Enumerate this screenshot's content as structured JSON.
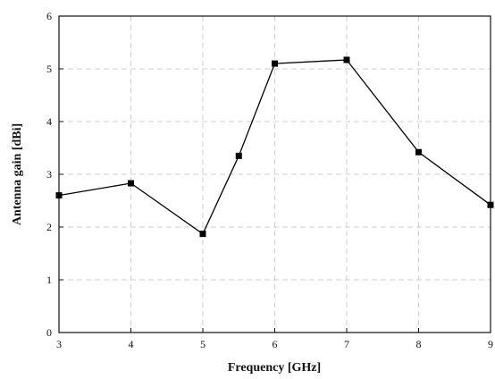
{
  "chart_data": {
    "type": "line",
    "xlabel": "Frequency [GHz]",
    "ylabel": "Antenna gain [dBi]",
    "xlim": [
      3,
      9
    ],
    "ylim": [
      0,
      6
    ],
    "x_ticks": [
      "3",
      "4",
      "5",
      "6",
      "7",
      "8",
      "9"
    ],
    "y_ticks": [
      "0",
      "1",
      "2",
      "3",
      "4",
      "5",
      "6"
    ],
    "grid": true,
    "series": [
      {
        "x": [
          3,
          4,
          5,
          5.5,
          6,
          7,
          8,
          9
        ],
        "y": [
          2.6,
          2.83,
          1.87,
          3.35,
          5.1,
          5.17,
          3.42,
          2.42
        ],
        "marker": "square",
        "color": "#000000"
      }
    ]
  }
}
